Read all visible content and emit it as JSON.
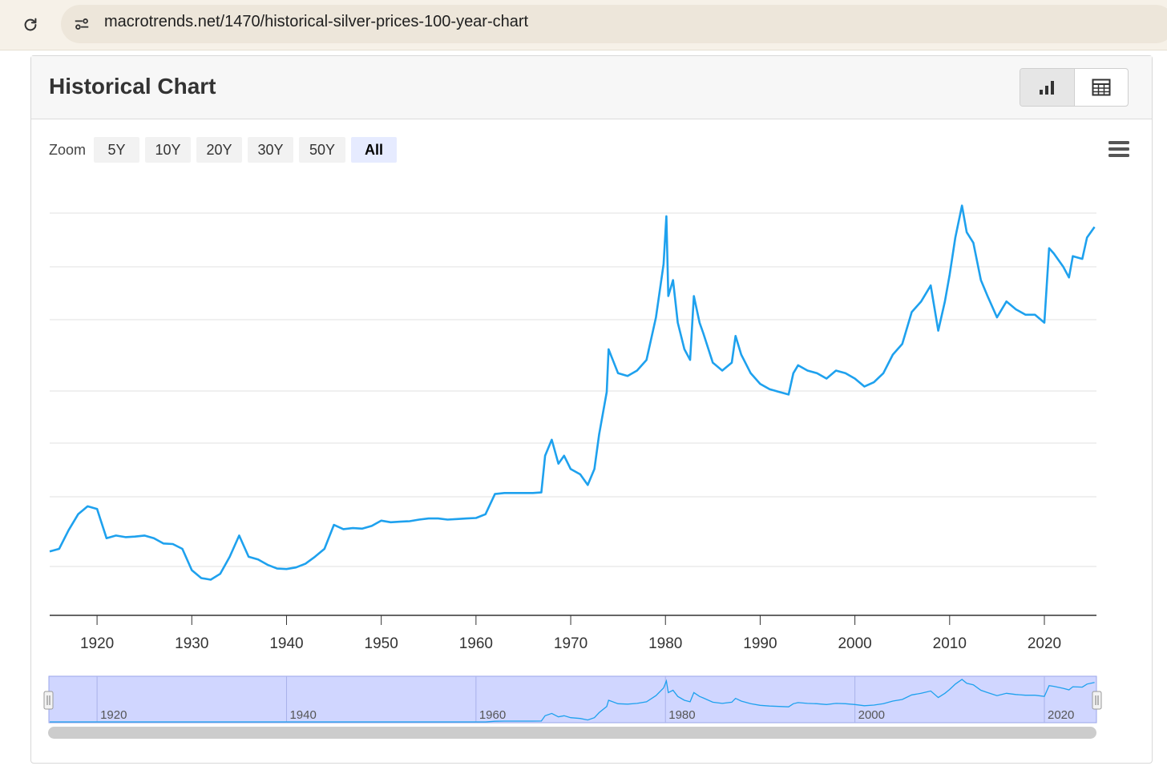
{
  "browser": {
    "url": "macrotrends.net/1470/historical-silver-prices-100-year-chart",
    "reload_icon": "reload-icon",
    "settings_icon": "site-settings-icon"
  },
  "card": {
    "title": "Historical Chart",
    "views": [
      {
        "name": "chart-view",
        "icon": "bar-chart-icon",
        "active": true
      },
      {
        "name": "table-view",
        "icon": "table-icon",
        "active": false
      }
    ]
  },
  "zoom": {
    "label": "Zoom",
    "options": [
      "5Y",
      "10Y",
      "20Y",
      "30Y",
      "50Y",
      "All"
    ],
    "selected": "All"
  },
  "colors": {
    "line": "#1ea1ee",
    "navigator_fill": "#d0d6ff",
    "grid": "#e2e2e2"
  },
  "chart_data": {
    "type": "line",
    "title": "",
    "xlabel": "",
    "ylabel": "",
    "xlim": [
      1915,
      2025.5
    ],
    "x_ticks": [
      "1920",
      "1930",
      "1940",
      "1950",
      "1960",
      "1970",
      "1980",
      "1990",
      "2000",
      "2010",
      "2020"
    ],
    "y_tick_labels_visible": false,
    "grid": true,
    "navigator_ticks": [
      "1920",
      "1940",
      "1960",
      "1980",
      "2000",
      "2020"
    ],
    "series": [
      {
        "values": [
          [
            1915,
            1.2
          ],
          [
            1916,
            1.25
          ],
          [
            1917,
            1.6
          ],
          [
            1918,
            1.9
          ],
          [
            1919,
            2.05
          ],
          [
            1920,
            2.0
          ],
          [
            1921,
            1.45
          ],
          [
            1922,
            1.5
          ],
          [
            1923,
            1.47
          ],
          [
            1924,
            1.48
          ],
          [
            1925,
            1.5
          ],
          [
            1926,
            1.45
          ],
          [
            1927,
            1.35
          ],
          [
            1928,
            1.34
          ],
          [
            1929,
            1.25
          ],
          [
            1930,
            0.85
          ],
          [
            1931,
            0.7
          ],
          [
            1932,
            0.67
          ],
          [
            1933,
            0.78
          ],
          [
            1934,
            1.1
          ],
          [
            1935,
            1.5
          ],
          [
            1936,
            1.1
          ],
          [
            1937,
            1.05
          ],
          [
            1938,
            0.95
          ],
          [
            1939,
            0.88
          ],
          [
            1940,
            0.87
          ],
          [
            1941,
            0.9
          ],
          [
            1942,
            0.97
          ],
          [
            1943,
            1.1
          ],
          [
            1944,
            1.25
          ],
          [
            1945,
            1.7
          ],
          [
            1946,
            1.62
          ],
          [
            1947,
            1.64
          ],
          [
            1948,
            1.63
          ],
          [
            1949,
            1.68
          ],
          [
            1950,
            1.78
          ],
          [
            1951,
            1.75
          ],
          [
            1952,
            1.76
          ],
          [
            1953,
            1.77
          ],
          [
            1954,
            1.8
          ],
          [
            1955,
            1.82
          ],
          [
            1956,
            1.82
          ],
          [
            1957,
            1.8
          ],
          [
            1958,
            1.81
          ],
          [
            1959,
            1.82
          ],
          [
            1960,
            1.83
          ],
          [
            1961,
            1.9
          ],
          [
            1962,
            2.28
          ],
          [
            1963,
            2.3
          ],
          [
            1966,
            2.3
          ],
          [
            1966.9,
            2.31
          ],
          [
            1967.3,
            3.0
          ],
          [
            1968,
            3.3
          ],
          [
            1968.7,
            2.85
          ],
          [
            1969.3,
            3.0
          ],
          [
            1970,
            2.75
          ],
          [
            1971,
            2.65
          ],
          [
            1971.8,
            2.45
          ],
          [
            1972.5,
            2.75
          ],
          [
            1973,
            3.4
          ],
          [
            1973.8,
            4.2
          ],
          [
            1974,
            5.0
          ],
          [
            1975,
            4.55
          ],
          [
            1976,
            4.5
          ],
          [
            1977,
            4.6
          ],
          [
            1978,
            4.8
          ],
          [
            1979,
            5.6
          ],
          [
            1979.8,
            6.6
          ],
          [
            1980.1,
            7.5
          ],
          [
            1980.3,
            6.0
          ],
          [
            1980.8,
            6.3
          ],
          [
            1981.3,
            5.5
          ],
          [
            1982,
            5.0
          ],
          [
            1982.6,
            4.8
          ],
          [
            1983,
            6.0
          ],
          [
            1983.6,
            5.5
          ],
          [
            1984,
            5.3
          ],
          [
            1985,
            4.75
          ],
          [
            1986,
            4.6
          ],
          [
            1987,
            4.75
          ],
          [
            1987.4,
            5.25
          ],
          [
            1988,
            4.9
          ],
          [
            1989,
            4.55
          ],
          [
            1990,
            4.35
          ],
          [
            1991,
            4.25
          ],
          [
            1992,
            4.2
          ],
          [
            1993,
            4.15
          ],
          [
            1993.5,
            4.55
          ],
          [
            1994,
            4.7
          ],
          [
            1995,
            4.6
          ],
          [
            1996,
            4.55
          ],
          [
            1997,
            4.45
          ],
          [
            1998,
            4.6
          ],
          [
            1999,
            4.55
          ],
          [
            2000,
            4.45
          ],
          [
            2001,
            4.3
          ],
          [
            2002,
            4.38
          ],
          [
            2003,
            4.55
          ],
          [
            2004,
            4.9
          ],
          [
            2005,
            5.1
          ],
          [
            2006,
            5.7
          ],
          [
            2007,
            5.9
          ],
          [
            2008,
            6.2
          ],
          [
            2008.8,
            5.35
          ],
          [
            2009.5,
            5.9
          ],
          [
            2010,
            6.4
          ],
          [
            2010.6,
            7.1
          ],
          [
            2011.3,
            7.7
          ],
          [
            2011.8,
            7.2
          ],
          [
            2012.5,
            7.0
          ],
          [
            2013.3,
            6.3
          ],
          [
            2014,
            6.0
          ],
          [
            2015,
            5.6
          ],
          [
            2016,
            5.9
          ],
          [
            2017,
            5.75
          ],
          [
            2018,
            5.65
          ],
          [
            2019,
            5.65
          ],
          [
            2020,
            5.5
          ],
          [
            2020.5,
            6.9
          ],
          [
            2021,
            6.8
          ],
          [
            2022,
            6.55
          ],
          [
            2022.6,
            6.35
          ],
          [
            2023,
            6.75
          ],
          [
            2024,
            6.7
          ],
          [
            2024.5,
            7.1
          ],
          [
            2025.3,
            7.3
          ]
        ]
      }
    ]
  }
}
